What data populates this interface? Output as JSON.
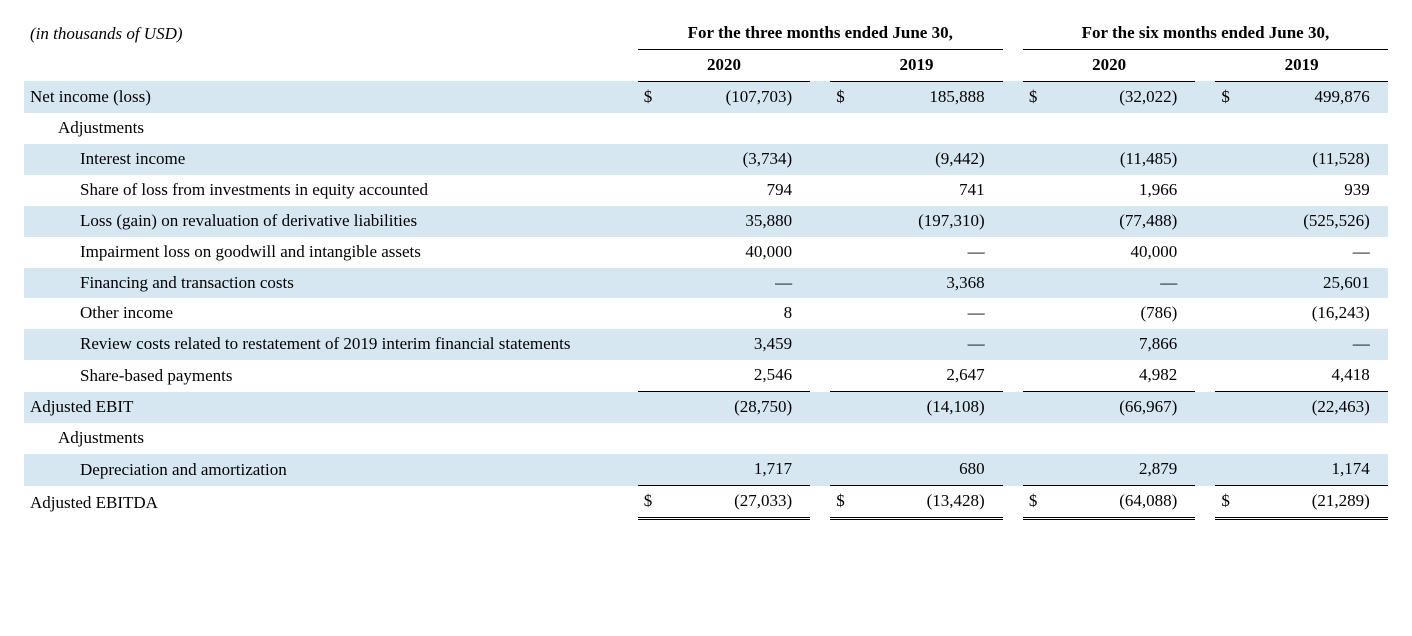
{
  "meta": {
    "unit_note": "(in thousands of USD)"
  },
  "periods": {
    "group1_header": "For the three months ended June 30,",
    "group2_header": "For the six months ended June 30,",
    "years": [
      "2020",
      "2019",
      "2020",
      "2019"
    ]
  },
  "currency_symbol": "$",
  "em_dash": "—",
  "rows": [
    {
      "key": "net_income",
      "label": "Net income (loss)",
      "indent": 0,
      "shade": true,
      "show_currency": true,
      "vals": [
        "(107,703)",
        "185,888",
        "(32,022)",
        "499,876"
      ]
    },
    {
      "key": "adjustments1",
      "label": "Adjustments",
      "indent": 1,
      "shade": false,
      "show_currency": false,
      "vals": [
        "",
        "",
        "",
        ""
      ]
    },
    {
      "key": "interest_income",
      "label": "Interest income",
      "indent": 2,
      "shade": true,
      "show_currency": false,
      "vals": [
        "(3,734)",
        "(9,442)",
        "(11,485)",
        "(11,528)"
      ]
    },
    {
      "key": "share_loss_equity",
      "label": "Share of loss from investments in equity accounted",
      "indent": 2,
      "shade": false,
      "show_currency": false,
      "vals": [
        "794",
        "741",
        "1,966",
        "939"
      ]
    },
    {
      "key": "loss_gain_deriv",
      "label": "Loss (gain) on revaluation of derivative liabilities",
      "indent": 2,
      "shade": true,
      "show_currency": false,
      "vals": [
        "35,880",
        "(197,310)",
        "(77,488)",
        "(525,526)"
      ]
    },
    {
      "key": "impairment",
      "label": "Impairment loss on goodwill and intangible assets",
      "indent": 2,
      "shade": false,
      "show_currency": false,
      "vals": [
        "40,000",
        "—",
        "40,000",
        "—"
      ]
    },
    {
      "key": "financing",
      "label": "Financing and transaction costs",
      "indent": 2,
      "shade": true,
      "show_currency": false,
      "vals": [
        "—",
        "3,368",
        "—",
        "25,601"
      ]
    },
    {
      "key": "other_income",
      "label": "Other income",
      "indent": 2,
      "shade": false,
      "show_currency": false,
      "vals": [
        "8",
        "—",
        "(786)",
        "(16,243)"
      ]
    },
    {
      "key": "review_costs",
      "label": "Review costs related to restatement of 2019 interim financial statements",
      "indent": 2,
      "shade": true,
      "show_currency": false,
      "vals": [
        "3,459",
        "—",
        "7,866",
        "—"
      ]
    },
    {
      "key": "share_based",
      "label": "Share-based payments",
      "indent": 2,
      "shade": false,
      "show_currency": false,
      "bottom_border": true,
      "vals": [
        "2,546",
        "2,647",
        "4,982",
        "4,418"
      ]
    },
    {
      "key": "adj_ebit",
      "label": "Adjusted EBIT",
      "indent": 0,
      "shade": true,
      "show_currency": false,
      "vals": [
        "(28,750)",
        "(14,108)",
        "(66,967)",
        "(22,463)"
      ]
    },
    {
      "key": "adjustments2",
      "label": "Adjustments",
      "indent": 1,
      "shade": false,
      "show_currency": false,
      "vals": [
        "",
        "",
        "",
        ""
      ]
    },
    {
      "key": "dep_amort",
      "label": "Depreciation and amortization",
      "indent": 2,
      "shade": true,
      "show_currency": false,
      "bottom_border": true,
      "vals": [
        "1,717",
        "680",
        "2,879",
        "1,174"
      ]
    },
    {
      "key": "adj_ebitda",
      "label": "Adjusted EBITDA",
      "indent": 0,
      "shade": false,
      "show_currency": true,
      "double_bottom": true,
      "vals": [
        "(27,033)",
        "(13,428)",
        "(64,088)",
        "(21,289)"
      ]
    }
  ],
  "style": {
    "shade_color": "#d6e7f2",
    "text_color": "#000000",
    "background": "#ffffff",
    "font_family": "Times New Roman",
    "font_size_pt": 13
  }
}
